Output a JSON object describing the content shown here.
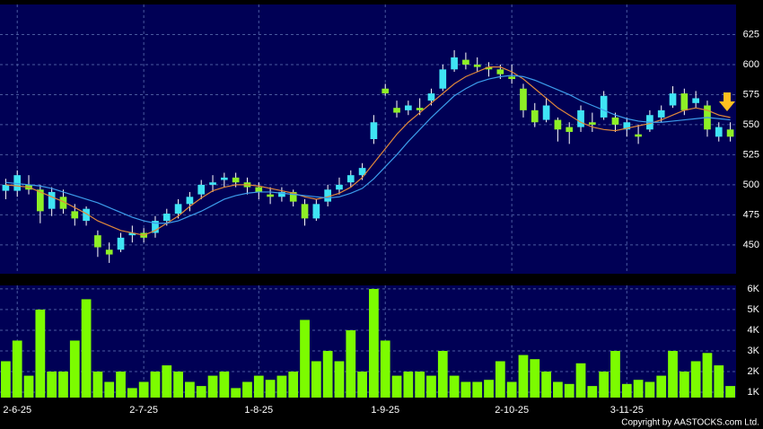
{
  "chart_data": [
    {
      "type": "candlestick",
      "categories": [
        null,
        "2-6-25",
        null,
        null,
        null,
        null,
        null,
        null,
        null,
        null,
        null,
        null,
        "2-7-25",
        null,
        null,
        null,
        null,
        null,
        null,
        null,
        null,
        null,
        "1-8-25",
        null,
        null,
        null,
        null,
        null,
        null,
        null,
        null,
        null,
        null,
        "1-9-25",
        null,
        null,
        null,
        null,
        null,
        null,
        null,
        null,
        null,
        null,
        "2-10-25",
        null,
        null,
        null,
        null,
        null,
        null,
        null,
        null,
        null,
        "3-11-25",
        null,
        null,
        null,
        null,
        null,
        null,
        null,
        null,
        null
      ],
      "open": [
        495,
        495,
        500,
        496,
        480,
        490,
        478,
        470,
        458,
        446,
        446,
        458,
        460,
        460,
        470,
        476,
        484,
        492,
        500,
        504,
        506,
        502,
        498,
        492,
        490,
        494,
        484,
        472,
        486,
        496,
        502,
        508,
        538,
        580,
        564,
        562,
        564,
        570,
        580,
        596,
        604,
        600,
        598,
        596,
        590,
        580,
        562,
        554,
        554,
        548,
        548,
        552,
        556,
        556,
        546,
        542,
        546,
        556,
        566,
        576,
        568,
        566,
        540,
        546
      ],
      "high": [
        505,
        512,
        508,
        500,
        498,
        496,
        484,
        482,
        462,
        452,
        460,
        466,
        464,
        474,
        480,
        488,
        494,
        504,
        508,
        510,
        510,
        506,
        502,
        498,
        498,
        496,
        488,
        488,
        500,
        506,
        512,
        518,
        558,
        584,
        570,
        570,
        572,
        580,
        600,
        612,
        610,
        606,
        602,
        600,
        600,
        584,
        568,
        572,
        556,
        552,
        566,
        560,
        578,
        560,
        556,
        550,
        562,
        566,
        582,
        580,
        578,
        570,
        552,
        552
      ],
      "low": [
        488,
        490,
        492,
        468,
        474,
        476,
        466,
        466,
        440,
        435,
        444,
        452,
        452,
        456,
        466,
        472,
        478,
        488,
        494,
        498,
        498,
        492,
        488,
        484,
        486,
        482,
        466,
        470,
        482,
        492,
        498,
        504,
        534,
        574,
        556,
        558,
        558,
        566,
        578,
        594,
        596,
        594,
        590,
        588,
        584,
        556,
        548,
        552,
        536,
        534,
        544,
        544,
        554,
        544,
        540,
        534,
        544,
        552,
        564,
        558,
        564,
        540,
        536,
        536
      ],
      "close": [
        500,
        508,
        496,
        478,
        494,
        480,
        472,
        480,
        448,
        442,
        456,
        460,
        456,
        470,
        476,
        484,
        490,
        500,
        502,
        506,
        502,
        498,
        494,
        490,
        494,
        486,
        472,
        484,
        496,
        500,
        508,
        514,
        552,
        576,
        560,
        566,
        562,
        576,
        596,
        606,
        600,
        598,
        596,
        592,
        588,
        562,
        552,
        566,
        546,
        544,
        562,
        550,
        574,
        550,
        552,
        540,
        558,
        562,
        576,
        562,
        572,
        546,
        548,
        540
      ],
      "up_color": "#3fe4f4",
      "down_color": "#8ef026",
      "series": [
        {
          "name": "MA10",
          "color": "#e0883a",
          "values": [
            500,
            499,
            498,
            494,
            490,
            486,
            481,
            476,
            470,
            466,
            462,
            460,
            458,
            462,
            468,
            474,
            482,
            489,
            495,
            498,
            500,
            500,
            499,
            497,
            495,
            493,
            490,
            488,
            490,
            493,
            498,
            506,
            518,
            530,
            542,
            552,
            560,
            568,
            576,
            584,
            590,
            594,
            598,
            598,
            594,
            588,
            580,
            572,
            564,
            558,
            552,
            548,
            546,
            545,
            547,
            549,
            551,
            554,
            558,
            562,
            564,
            562,
            558,
            556
          ]
        },
        {
          "name": "MA20",
          "color": "#3c9ceb",
          "values": [
            502,
            501,
            500,
            499,
            497,
            494,
            491,
            488,
            485,
            481,
            477,
            473,
            470,
            468,
            468,
            470,
            474,
            478,
            483,
            488,
            491,
            493,
            494,
            494,
            493,
            492,
            491,
            490,
            489,
            490,
            493,
            497,
            505,
            515,
            525,
            536,
            546,
            556,
            565,
            574,
            580,
            585,
            588,
            590,
            591,
            590,
            587,
            583,
            579,
            575,
            570,
            566,
            562,
            558,
            555,
            553,
            552,
            552,
            553,
            554,
            555,
            556,
            555,
            554
          ]
        }
      ],
      "ylim": [
        426,
        650
      ],
      "yticks": [
        450,
        475,
        500,
        525,
        550,
        575,
        600,
        625
      ],
      "grid": true
    },
    {
      "type": "bar",
      "color": "#7cfc00",
      "values": [
        2500,
        3500,
        1800,
        5000,
        2000,
        2000,
        3500,
        5500,
        2000,
        1500,
        2000,
        1200,
        1500,
        2000,
        2300,
        2000,
        1500,
        1300,
        1800,
        2000,
        1200,
        1500,
        1800,
        1600,
        1800,
        2000,
        4500,
        2500,
        3000,
        2500,
        4000,
        2000,
        6000,
        3500,
        1800,
        2000,
        2000,
        1800,
        3000,
        1800,
        1500,
        1500,
        1600,
        2500,
        1500,
        2800,
        2600,
        2000,
        1500,
        1400,
        2400,
        1300,
        2000,
        3000,
        1400,
        1600,
        1500,
        1800,
        3000,
        2000,
        2500,
        2900,
        2300,
        1300
      ],
      "ylim": [
        740,
        6170
      ],
      "yticks": [
        {
          "value": 1000,
          "label": "1K"
        },
        {
          "value": 2000,
          "label": "2K"
        },
        {
          "value": 3000,
          "label": "3K"
        },
        {
          "value": 4000,
          "label": "4K"
        },
        {
          "value": 5000,
          "label": "5K"
        },
        {
          "value": 6000,
          "label": "6K"
        }
      ],
      "grid": true
    }
  ],
  "copyright": "Copyright by AASTOCKS.com Ltd."
}
